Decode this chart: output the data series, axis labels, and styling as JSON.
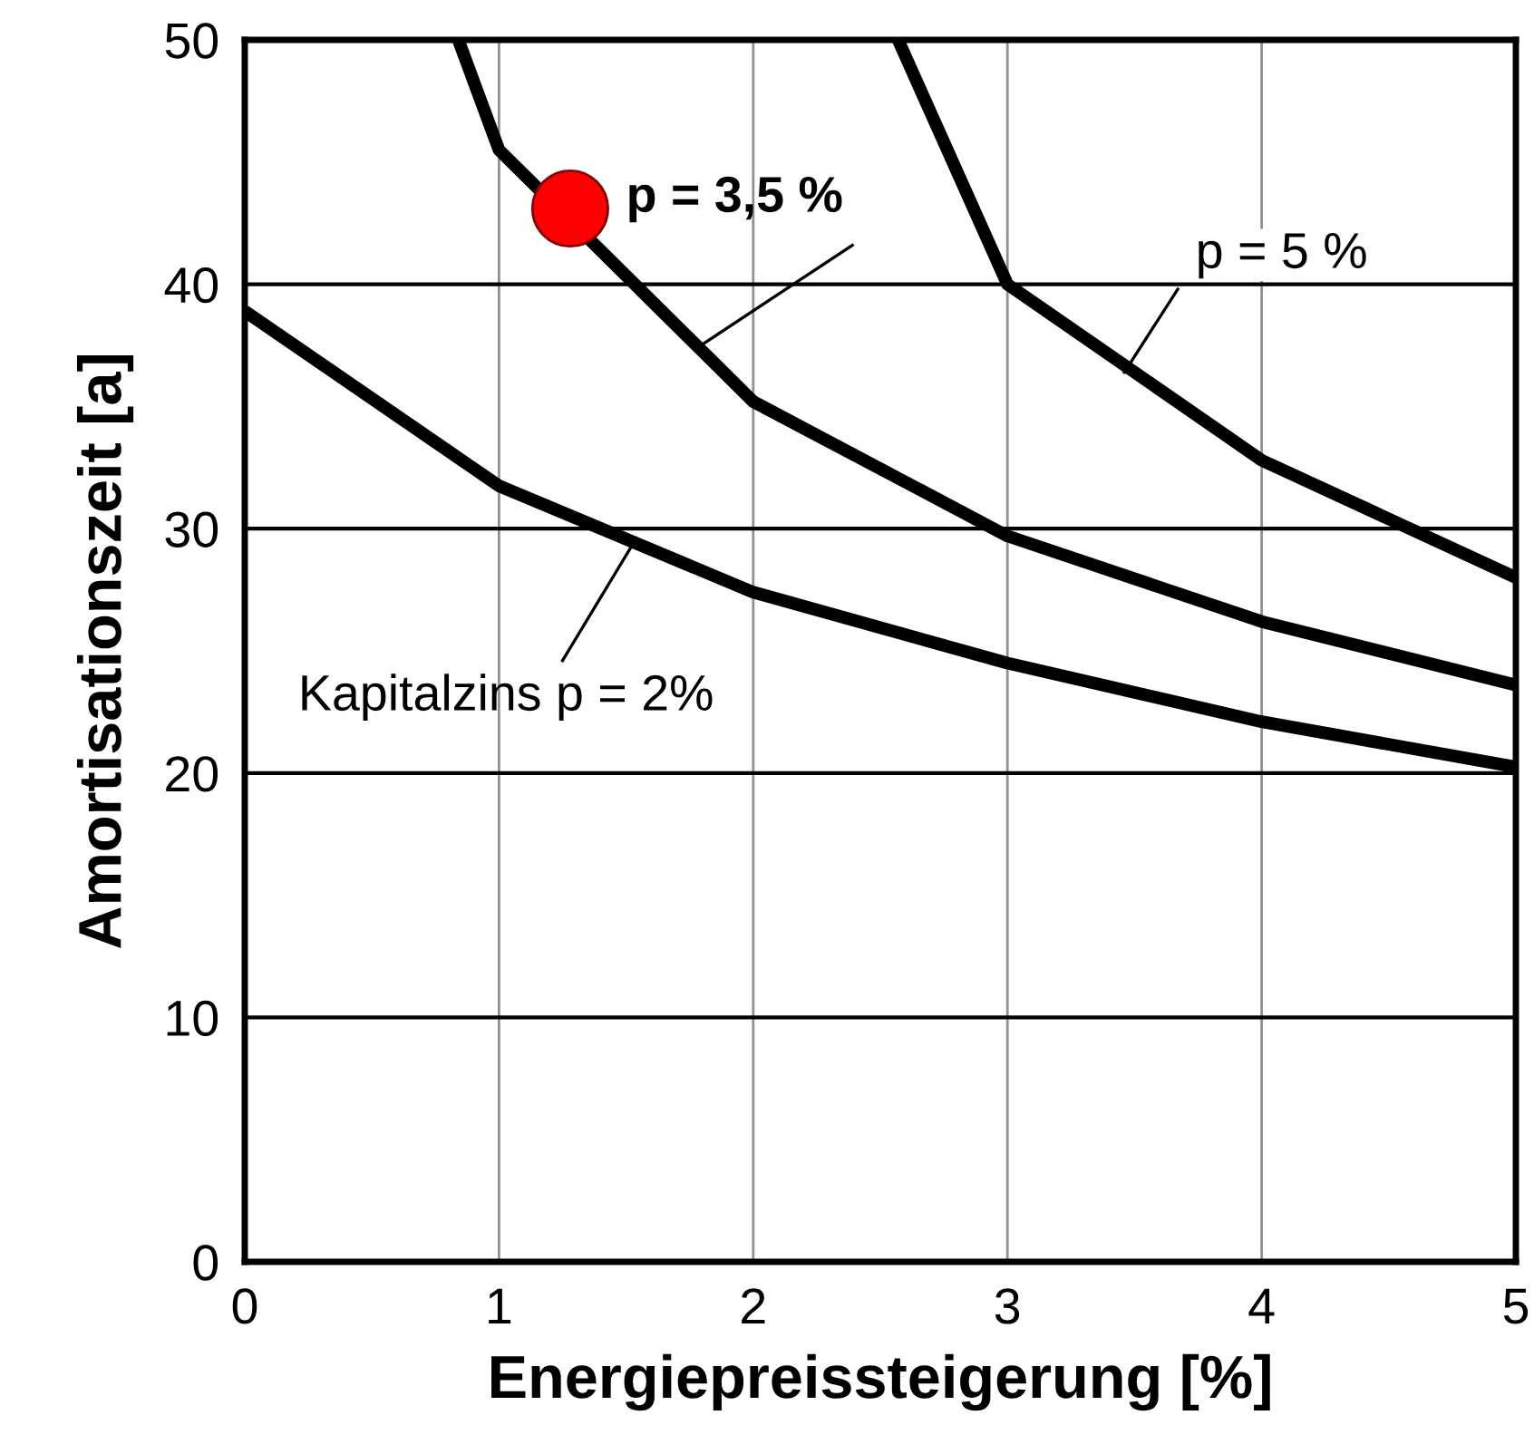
{
  "chart_data": {
    "type": "line",
    "xlabel": "Energiepreissteigerung [%]",
    "ylabel": "Amortisationszeit [a]",
    "xlim": [
      0,
      5
    ],
    "ylim": [
      0,
      50
    ],
    "xticks": [
      0,
      1,
      2,
      3,
      4,
      5
    ],
    "yticks": [
      0,
      10,
      20,
      30,
      40,
      50
    ],
    "grid": true,
    "line_style": "solid",
    "series": [
      {
        "color": "#000000",
        "x": [
          0,
          1,
          2,
          3,
          4,
          5
        ],
        "values": [
          38.9,
          31.75,
          27.4,
          24.5,
          22.1,
          20.25
        ]
      },
      {
        "color": "#000000",
        "x": [
          0.84,
          1,
          2,
          3,
          4,
          5
        ],
        "values": [
          50,
          45.5,
          35.2,
          29.7,
          26.2,
          23.6
        ]
      },
      {
        "color": "#000000",
        "x": [
          2.57,
          3,
          4,
          5
        ],
        "values": [
          50,
          40.0,
          32.8,
          28.0
        ]
      },
      {
        "type": "scatter",
        "marker": "circle",
        "color": "#ff0000",
        "x": [
          1.28
        ],
        "values": [
          43.1
        ]
      }
    ],
    "annotations": [
      {
        "text": "p = 3,5 %",
        "x": 1.78,
        "y": 37.4
      },
      {
        "text": "p = 5 %",
        "x": 3.46,
        "y": 36.4
      },
      {
        "text": "Kapitalzins p = 2%",
        "x": 1.54,
        "y": 29.6
      }
    ]
  }
}
